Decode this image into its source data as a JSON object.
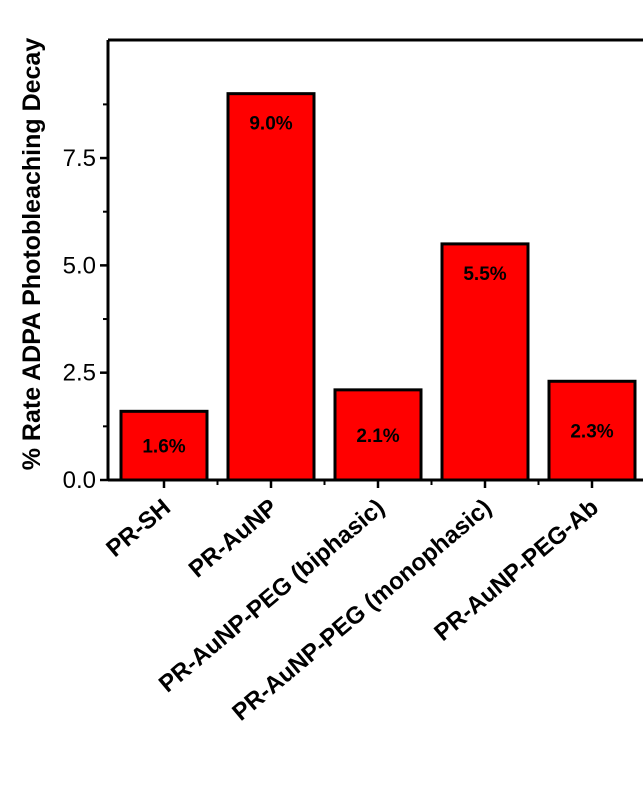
{
  "chart_data": {
    "type": "bar",
    "categories": [
      "PR-SH",
      "PR-AuNP",
      "PR-AuNP-PEG  (biphasic)",
      "PR-AuNP-PEG  (monophasic)",
      "PR-AuNP-PEG-Ab"
    ],
    "values": [
      1.6,
      9.0,
      2.1,
      5.5,
      2.3
    ],
    "data_labels": [
      "1.6%",
      "9.0%",
      "2.1%",
      "5.5%",
      "2.3%"
    ],
    "title": "",
    "xlabel": "",
    "ylabel": "% Rate ADPA Photobleaching Decay",
    "ylim": [
      0,
      10.25
    ],
    "yticks": [
      0.0,
      2.5,
      5.0,
      7.5
    ],
    "ytick_labels": [
      "0.0",
      "2.5",
      "5.0",
      "7.5"
    ],
    "bar_color": "#FF0000",
    "edge_color": "#000000",
    "grid": false,
    "legend": "none"
  }
}
